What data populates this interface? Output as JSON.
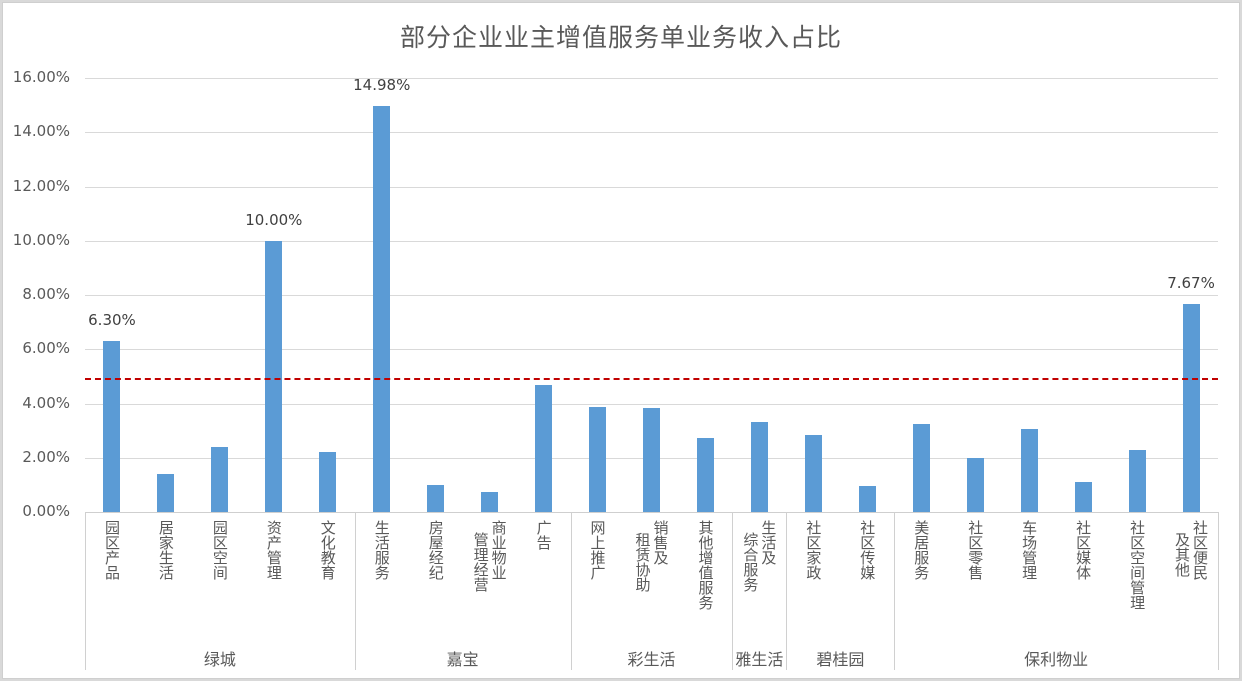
{
  "chart_data": {
    "type": "bar",
    "title": "部分企业业主增值服务单业务收入占比",
    "xlabel": "",
    "ylabel": "",
    "ylim": [
      0,
      16
    ],
    "yticks": [
      "0.00%",
      "2.00%",
      "4.00%",
      "6.00%",
      "8.00%",
      "10.00%",
      "12.00%",
      "14.00%",
      "16.00%"
    ],
    "grid": true,
    "legend": null,
    "categories": [
      "园区产品",
      "居家生活",
      "园区空间",
      "资产管理",
      "文化教育",
      "生活服务",
      "房屋经纪",
      "商业物业管理经营",
      "广告",
      "网上推广",
      "销售及租赁协助",
      "其他增值服务",
      "生活及综合服务",
      "社区家政",
      "社区传媒",
      "美居服务",
      "社区零售",
      "车场管理",
      "社区媒体",
      "社区空间管理",
      "社区便民及其他"
    ],
    "groups": [
      {
        "name": "绿城",
        "categories": [
          "园区产品",
          "居家生活",
          "园区空间",
          "资产管理",
          "文化教育"
        ]
      },
      {
        "name": "嘉宝",
        "categories": [
          "生活服务",
          "房屋经纪",
          "商业物业管理经营",
          "广告"
        ]
      },
      {
        "name": "彩生活",
        "categories": [
          "网上推广",
          "销售及租赁协助",
          "其他增值服务"
        ]
      },
      {
        "name": "雅生活",
        "categories": [
          "生活及综合服务"
        ]
      },
      {
        "name": "碧桂园",
        "categories": [
          "社区家政",
          "社区传媒"
        ]
      },
      {
        "name": "保利物业",
        "categories": [
          "美居服务",
          "社区零售",
          "车场管理",
          "社区媒体",
          "社区空间管理",
          "社区便民及其他"
        ]
      }
    ],
    "values": [
      6.3,
      1.4,
      2.4,
      10.0,
      2.2,
      14.98,
      1.0,
      0.75,
      4.68,
      3.87,
      3.83,
      2.73,
      3.33,
      2.85,
      0.97,
      3.23,
      1.98,
      3.05,
      1.1,
      2.28,
      7.67
    ],
    "unit": "%",
    "data_labels": {
      "园区产品": "6.30%",
      "资产管理": "10.00%",
      "生活服务": "14.98%",
      "社区便民及其他": "7.67%"
    },
    "reference_line": {
      "value": 4.93,
      "style": "dashed",
      "color": "#c00000"
    },
    "bar_color": "#5b9bd5"
  },
  "labels": {
    "title": "部分企业业主增值服务单业务收入占比",
    "yticks": [
      "0.00%",
      "2.00%",
      "4.00%",
      "6.00%",
      "8.00%",
      "10.00%",
      "12.00%",
      "14.00%",
      "16.00%"
    ],
    "cats": [
      [
        "园区产品"
      ],
      [
        "居家生活"
      ],
      [
        "园区空间"
      ],
      [
        "资产管理"
      ],
      [
        "文化教育"
      ],
      [
        "生活服务"
      ],
      [
        "房屋经纪"
      ],
      [
        "商业物业",
        "管理经营"
      ],
      [
        "广告"
      ],
      [
        "网上推广"
      ],
      [
        "销售及",
        "租赁协助"
      ],
      [
        "其他增值服务"
      ],
      [
        "生活及",
        "综合服务"
      ],
      [
        "社区家政"
      ],
      [
        "社区传媒"
      ],
      [
        "美居服务"
      ],
      [
        "社区零售"
      ],
      [
        "车场管理"
      ],
      [
        "社区媒体"
      ],
      [
        "社区空间管理"
      ],
      [
        "社区便民",
        "及其他"
      ]
    ],
    "groups": [
      "绿城",
      "嘉宝",
      "彩生活",
      "雅生活",
      "碧桂园",
      "保利物业"
    ],
    "dlabels": [
      "6.30%",
      "10.00%",
      "14.98%",
      "7.67%"
    ]
  }
}
